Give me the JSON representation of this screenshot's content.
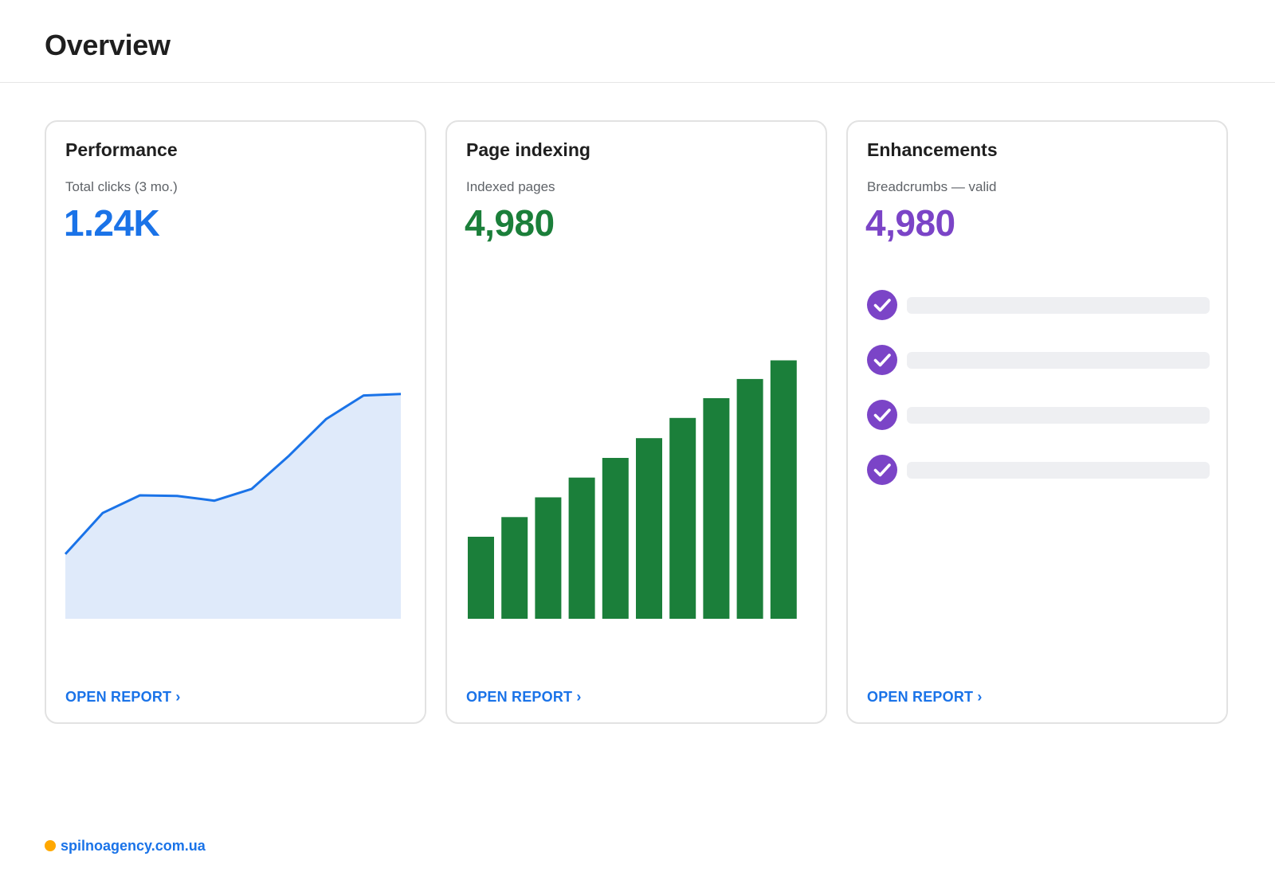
{
  "header": {
    "title": "Overview"
  },
  "cards": [
    {
      "title": "Performance",
      "subtitle": "Total clicks (3 mo.)",
      "metric": "1.24K",
      "link": "OPEN REPORT ›",
      "color": "#1a73e8",
      "chart_data": {
        "type": "area",
        "series": [
          {
            "values": [
              220,
              360,
              420,
              418,
              402,
              442,
              555,
              680,
              760,
              765
            ]
          }
        ],
        "ylim": [
          0,
          1000
        ],
        "grid": false,
        "fill_color": "#dfeafa",
        "line_color": "#1a73e8"
      }
    },
    {
      "title": "Page indexing",
      "subtitle": "Indexed pages",
      "metric": "4,980",
      "link": "OPEN REPORT ›",
      "color": "#1b7f3a",
      "chart_data": {
        "type": "bar",
        "values": [
          1580,
          1960,
          2340,
          2720,
          3100,
          3480,
          3870,
          4250,
          4620,
          4980
        ],
        "ylim": [
          0,
          6000
        ],
        "grid": false,
        "bar_color": "#1b7f3a"
      }
    },
    {
      "title": "Enhancements",
      "subtitle": "Breadcrumbs — valid",
      "metric": "4,980",
      "link": "OPEN REPORT ›",
      "color": "#7b44c7",
      "checklist_count": 4,
      "icon": "check-circle-icon"
    }
  ],
  "footer": {
    "text": "spilnoagency.com.ua",
    "dot_color": "#ffa800"
  }
}
